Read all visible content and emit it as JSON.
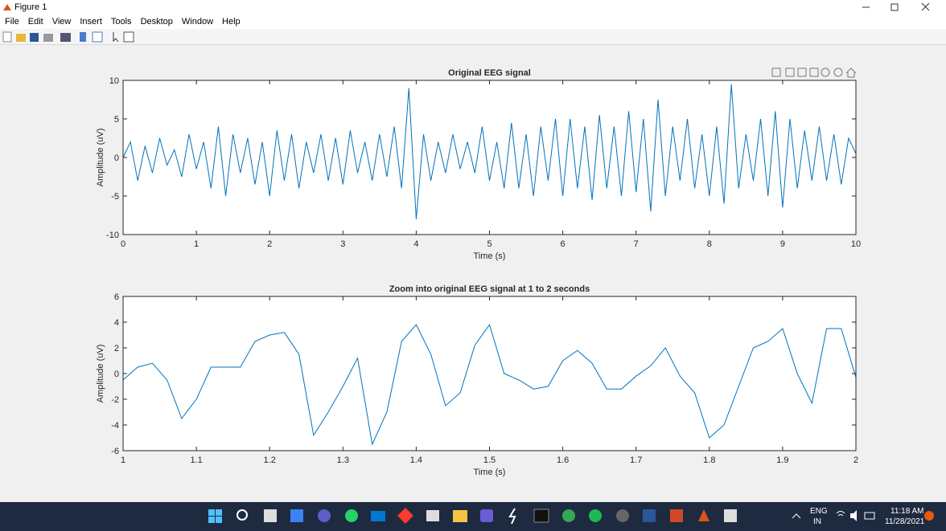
{
  "window": {
    "title": "Figure 1",
    "menu": [
      "File",
      "Edit",
      "View",
      "Insert",
      "Tools",
      "Desktop",
      "Window",
      "Help"
    ]
  },
  "taskbar": {
    "language": "ENG",
    "region": "IN",
    "time": "11:18 AM",
    "date": "11/28/2021"
  },
  "chart_data": [
    {
      "type": "line",
      "title": "Original EEG signal",
      "x_label": "Time (s)",
      "y_label": "Amplitude (uV)",
      "x": [
        0,
        0.1,
        0.2,
        0.3,
        0.4,
        0.5,
        0.6,
        0.7,
        0.8,
        0.9,
        1,
        1.1,
        1.2,
        1.3,
        1.4,
        1.5,
        1.6,
        1.7,
        1.8,
        1.9,
        2,
        2.1,
        2.2,
        2.3,
        2.4,
        2.5,
        2.6,
        2.7,
        2.8,
        2.9,
        3,
        3.1,
        3.2,
        3.3,
        3.4,
        3.5,
        3.6,
        3.7,
        3.8,
        3.9,
        4,
        4.1,
        4.2,
        4.3,
        4.4,
        4.5,
        4.6,
        4.7,
        4.8,
        4.9,
        5,
        5.1,
        5.2,
        5.3,
        5.4,
        5.5,
        5.6,
        5.7,
        5.8,
        5.9,
        6,
        6.1,
        6.2,
        6.3,
        6.4,
        6.5,
        6.6,
        6.7,
        6.8,
        6.9,
        7,
        7.1,
        7.2,
        7.3,
        7.4,
        7.5,
        7.6,
        7.7,
        7.8,
        7.9,
        8,
        8.1,
        8.2,
        8.3,
        8.4,
        8.5,
        8.6,
        8.7,
        8.8,
        8.9,
        9,
        9.1,
        9.2,
        9.3,
        9.4,
        9.5,
        9.6,
        9.7,
        9.8,
        9.9,
        10
      ],
      "series": [
        {
          "color": "#0072bd",
          "values": [
            0,
            2,
            -3,
            1.5,
            -2,
            2.5,
            -1,
            1,
            -2.5,
            3,
            -1.5,
            2,
            -4,
            4,
            -5,
            3,
            -2,
            2.5,
            -3.5,
            2,
            -5,
            3.5,
            -3,
            3,
            -4,
            2,
            -2,
            3,
            -3,
            2.5,
            -3.5,
            3.5,
            -2,
            2,
            -3,
            3,
            -2.5,
            4,
            -4,
            9,
            -8,
            3,
            -3,
            2,
            -2,
            3,
            -1.5,
            2,
            -2,
            4,
            -3,
            2,
            -4,
            4.5,
            -4,
            3,
            -5,
            4,
            -3,
            5,
            -5,
            5,
            -4,
            4,
            -5.5,
            5.5,
            -4,
            4,
            -5,
            6,
            -4.5,
            5,
            -7,
            7.5,
            -5,
            4,
            -3,
            5,
            -4,
            3,
            -5,
            4,
            -6,
            9.5,
            -4,
            3,
            -3,
            5,
            -5,
            6,
            -6.5,
            5,
            -4,
            3.5,
            -3,
            4,
            -3,
            3,
            -3.5,
            2.5,
            0.5
          ]
        }
      ],
      "xlim": [
        0,
        10
      ],
      "xticks": [
        0,
        1,
        2,
        3,
        4,
        5,
        6,
        7,
        8,
        9,
        10
      ],
      "ylim": [
        -10,
        10
      ],
      "yticks": [
        -10,
        -5,
        0,
        5,
        10
      ]
    },
    {
      "type": "line",
      "title": "Zoom into original EEG signal at 1 to 2 seconds",
      "x_label": "Time (s)",
      "y_label": "Amplitude (uV)",
      "x": [
        1,
        1.02,
        1.04,
        1.06,
        1.08,
        1.1,
        1.12,
        1.14,
        1.16,
        1.18,
        1.2,
        1.22,
        1.24,
        1.26,
        1.28,
        1.3,
        1.32,
        1.34,
        1.36,
        1.38,
        1.4,
        1.42,
        1.44,
        1.46,
        1.48,
        1.5,
        1.52,
        1.54,
        1.56,
        1.58,
        1.6,
        1.62,
        1.64,
        1.66,
        1.68,
        1.7,
        1.72,
        1.74,
        1.76,
        1.78,
        1.8,
        1.82,
        1.84,
        1.86,
        1.88,
        1.9,
        1.92,
        1.94,
        1.96,
        1.98,
        2
      ],
      "series": [
        {
          "color": "#0072bd",
          "values": [
            -0.5,
            0.5,
            0.8,
            -0.5,
            -3.5,
            -2,
            0.5,
            0.5,
            0.5,
            2.5,
            3,
            3.2,
            1.5,
            -4.8,
            -3,
            -1,
            1.2,
            -5.5,
            -3,
            2.5,
            3.8,
            1.5,
            -2.5,
            -1.5,
            2.2,
            3.8,
            0,
            -0.5,
            -1.2,
            -1,
            1,
            1.8,
            0.8,
            -1.2,
            -1.2,
            -0.2,
            0.6,
            2,
            -0.2,
            -1.5,
            -5,
            -4,
            -1,
            2,
            2.5,
            3.5,
            0,
            -2.3,
            3.5,
            3.5,
            -0.3
          ]
        }
      ],
      "xlim": [
        1,
        2
      ],
      "xticks": [
        1,
        1.1,
        1.2,
        1.3,
        1.4,
        1.5,
        1.6,
        1.7,
        1.8,
        1.9,
        2
      ],
      "ylim": [
        -6,
        6
      ],
      "yticks": [
        -6,
        -4,
        -2,
        0,
        2,
        4,
        6
      ]
    }
  ]
}
